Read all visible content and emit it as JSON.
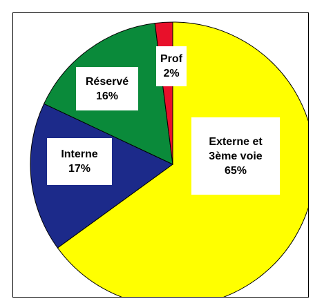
{
  "chart_data": {
    "type": "pie",
    "categories": [
      "Externe et 3ème voie",
      "Interne",
      "Réservé",
      "Prof"
    ],
    "values": [
      65,
      17,
      16,
      2
    ],
    "value_labels": [
      "65%",
      "17%",
      "16%",
      "2%"
    ],
    "colors": [
      "#ffff00",
      "#1c2a8a",
      "#0a8a3a",
      "#e8102a"
    ]
  }
}
